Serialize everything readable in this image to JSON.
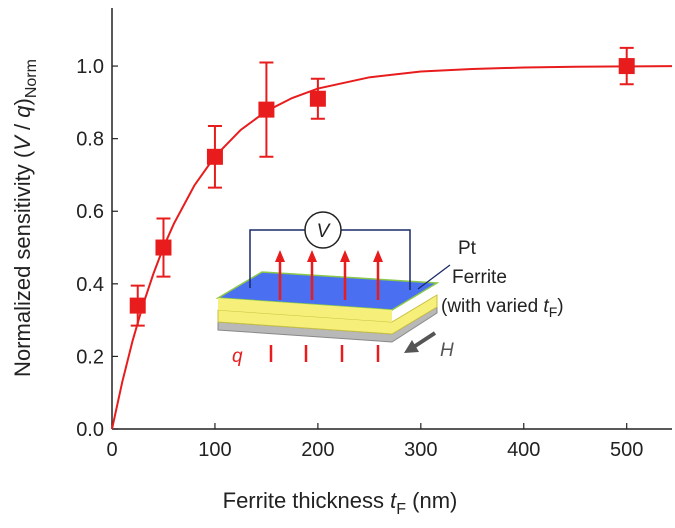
{
  "chart_data": {
    "type": "scatter",
    "x_label": [
      "Ferrite thickness ",
      "t",
      "F",
      " (nm)"
    ],
    "y_label": [
      "Normalized sensitivity (",
      "V",
      " / ",
      "q",
      ")",
      "Norm"
    ],
    "x": [
      25,
      50,
      100,
      150,
      200,
      500
    ],
    "values": [
      0.34,
      0.5,
      0.75,
      0.88,
      0.91,
      1.0
    ],
    "errors": [
      0.055,
      0.08,
      0.085,
      0.13,
      0.055,
      0.05
    ],
    "color": "#e81c1c",
    "fit": {
      "x": [
        0,
        10,
        20,
        30,
        40,
        50,
        60,
        80,
        100,
        125,
        150,
        175,
        200,
        250,
        300,
        350,
        400,
        450,
        500,
        544
      ],
      "values": [
        0,
        0.13,
        0.243,
        0.341,
        0.426,
        0.501,
        0.565,
        0.671,
        0.751,
        0.824,
        0.876,
        0.912,
        0.938,
        0.969,
        0.985,
        0.992,
        0.996,
        0.998,
        0.999,
        1.0
      ]
    },
    "xlim": [
      0,
      544
    ],
    "ylim": [
      0,
      1.16
    ],
    "xticks": [
      0,
      100,
      200,
      300,
      400,
      500
    ],
    "yticks": [
      {
        "value": 0,
        "label": "0.0"
      },
      0.2,
      0.4,
      0.6,
      0.8,
      {
        "value": 1,
        "label": "1.0"
      }
    ],
    "inset": {
      "voltage": "V",
      "top_layer": "Pt",
      "middle_layer": "Ferrite",
      "middle_note": [
        "(with varied ",
        "t",
        "F",
        ")"
      ],
      "field": "H",
      "heat": "q"
    }
  }
}
